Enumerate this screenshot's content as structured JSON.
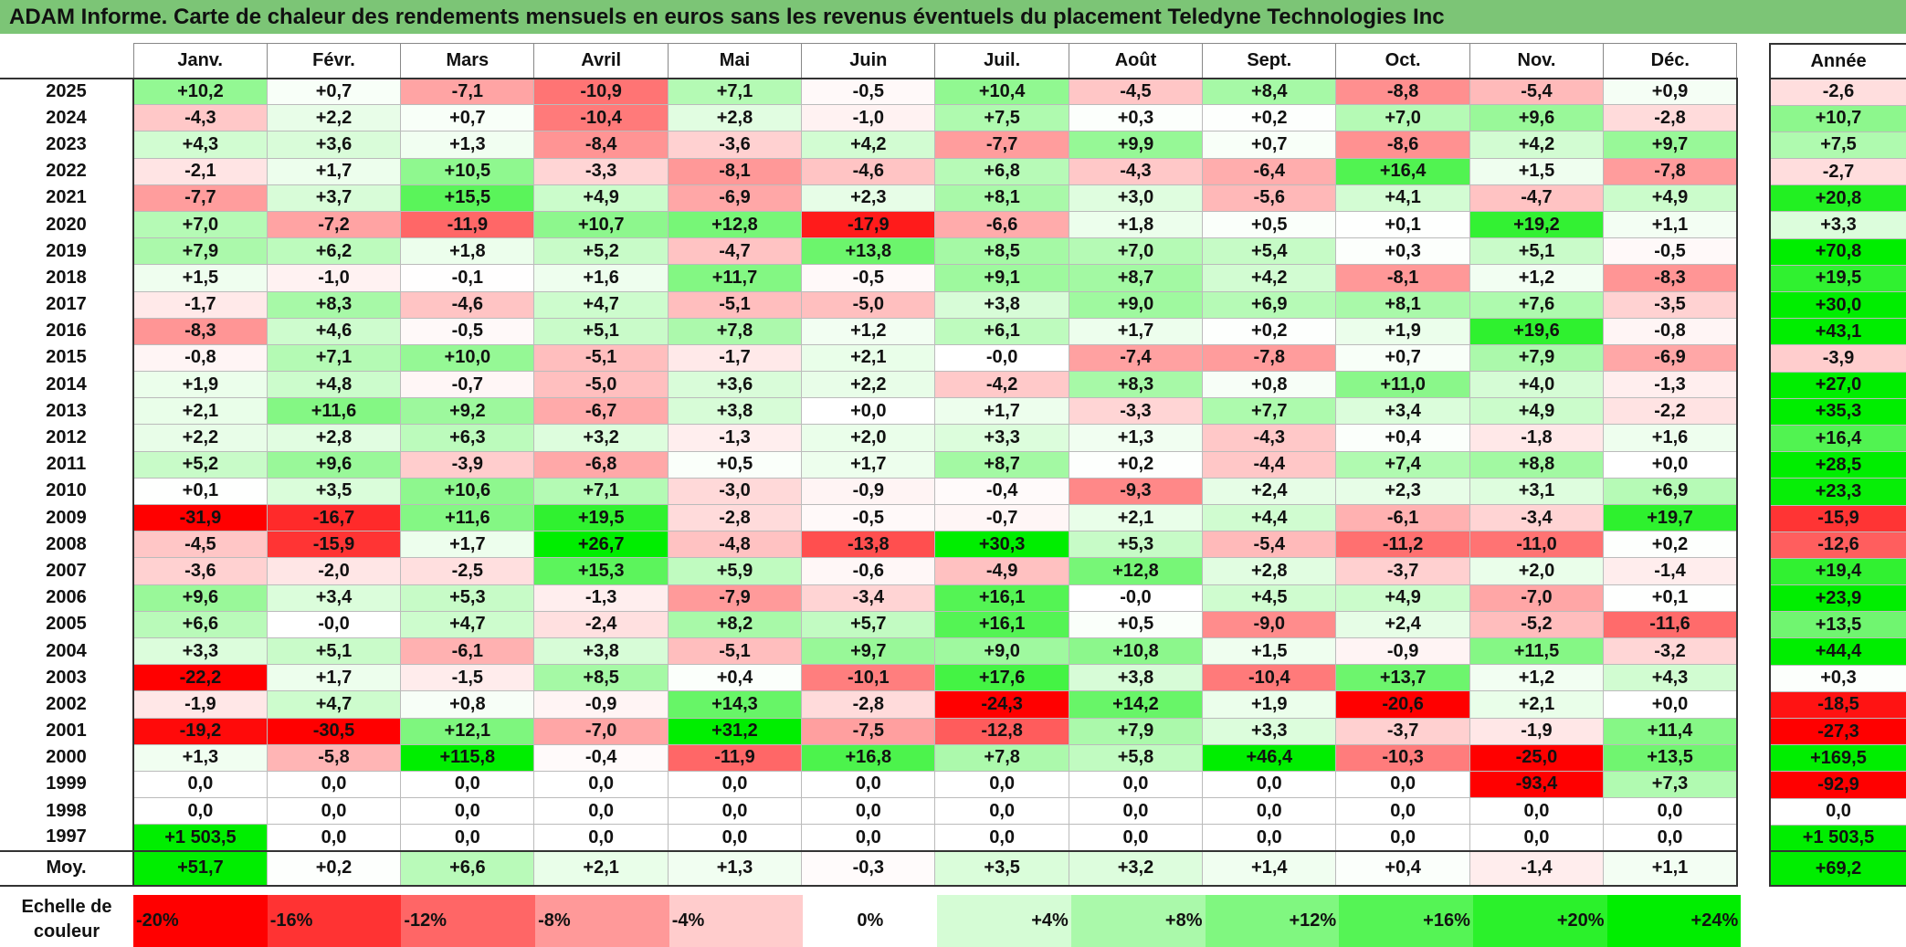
{
  "title": "ADAM Informe. Carte de chaleur des rendements mensuels en euros sans les revenus éventuels du placement Teledyne Technologies Inc",
  "chart_data": {
    "type": "heatmap",
    "title": "ADAM Informe. Carte de chaleur des rendements mensuels en euros sans les revenus éventuels du placement Teledyne Technologies Inc",
    "columns": [
      "Janv.",
      "Févr.",
      "Mars",
      "Avril",
      "Mai",
      "Juin",
      "Juil.",
      "Août",
      "Sept.",
      "Oct.",
      "Nov.",
      "Déc."
    ],
    "year_column_label": "Année",
    "rows": [
      {
        "year": "2025",
        "values": [
          "+10,2",
          "+0,7",
          "-7,1",
          "-10,9",
          "+7,1",
          "-0,5",
          "+10,4",
          "-4,5",
          "+8,4",
          "-8,8",
          "-5,4",
          "+0,9"
        ],
        "annual": "-2,6"
      },
      {
        "year": "2024",
        "values": [
          "-4,3",
          "+2,2",
          "+0,7",
          "-10,4",
          "+2,8",
          "-1,0",
          "+7,5",
          "+0,3",
          "+0,2",
          "+7,0",
          "+9,6",
          "-2,8"
        ],
        "annual": "+10,7"
      },
      {
        "year": "2023",
        "values": [
          "+4,3",
          "+3,6",
          "+1,3",
          "-8,4",
          "-3,6",
          "+4,2",
          "-7,7",
          "+9,9",
          "+0,7",
          "-8,6",
          "+4,2",
          "+9,7"
        ],
        "annual": "+7,5"
      },
      {
        "year": "2022",
        "values": [
          "-2,1",
          "+1,7",
          "+10,5",
          "-3,3",
          "-8,1",
          "-4,6",
          "+6,8",
          "-4,3",
          "-6,4",
          "+16,4",
          "+1,5",
          "-7,8"
        ],
        "annual": "-2,7"
      },
      {
        "year": "2021",
        "values": [
          "-7,7",
          "+3,7",
          "+15,5",
          "+4,9",
          "-6,9",
          "+2,3",
          "+8,1",
          "+3,0",
          "-5,6",
          "+4,1",
          "-4,7",
          "+4,9"
        ],
        "annual": "+20,8"
      },
      {
        "year": "2020",
        "values": [
          "+7,0",
          "-7,2",
          "-11,9",
          "+10,7",
          "+12,8",
          "-17,9",
          "-6,6",
          "+1,8",
          "+0,5",
          "+0,1",
          "+19,2",
          "+1,1"
        ],
        "annual": "+3,3"
      },
      {
        "year": "2019",
        "values": [
          "+7,9",
          "+6,2",
          "+1,8",
          "+5,2",
          "-4,7",
          "+13,8",
          "+8,5",
          "+7,0",
          "+5,4",
          "+0,3",
          "+5,1",
          "-0,5"
        ],
        "annual": "+70,8"
      },
      {
        "year": "2018",
        "values": [
          "+1,5",
          "-1,0",
          "-0,1",
          "+1,6",
          "+11,7",
          "-0,5",
          "+9,1",
          "+8,7",
          "+4,2",
          "-8,1",
          "+1,2",
          "-8,3"
        ],
        "annual": "+19,5"
      },
      {
        "year": "2017",
        "values": [
          "-1,7",
          "+8,3",
          "-4,6",
          "+4,7",
          "-5,1",
          "-5,0",
          "+3,8",
          "+9,0",
          "+6,9",
          "+8,1",
          "+7,6",
          "-3,5"
        ],
        "annual": "+30,0"
      },
      {
        "year": "2016",
        "values": [
          "-8,3",
          "+4,6",
          "-0,5",
          "+5,1",
          "+7,8",
          "+1,2",
          "+6,1",
          "+1,7",
          "+0,2",
          "+1,9",
          "+19,6",
          "-0,8"
        ],
        "annual": "+43,1"
      },
      {
        "year": "2015",
        "values": [
          "-0,8",
          "+7,1",
          "+10,0",
          "-5,1",
          "-1,7",
          "+2,1",
          "-0,0",
          "-7,4",
          "-7,8",
          "+0,7",
          "+7,9",
          "-6,9"
        ],
        "annual": "-3,9"
      },
      {
        "year": "2014",
        "values": [
          "+1,9",
          "+4,8",
          "-0,7",
          "-5,0",
          "+3,6",
          "+2,2",
          "-4,2",
          "+8,3",
          "+0,8",
          "+11,0",
          "+4,0",
          "-1,3"
        ],
        "annual": "+27,0"
      },
      {
        "year": "2013",
        "values": [
          "+2,1",
          "+11,6",
          "+9,2",
          "-6,7",
          "+3,8",
          "+0,0",
          "+1,7",
          "-3,3",
          "+7,7",
          "+3,4",
          "+4,9",
          "-2,2"
        ],
        "annual": "+35,3"
      },
      {
        "year": "2012",
        "values": [
          "+2,2",
          "+2,8",
          "+6,3",
          "+3,2",
          "-1,3",
          "+2,0",
          "+3,3",
          "+1,3",
          "-4,3",
          "+0,4",
          "-1,8",
          "+1,6"
        ],
        "annual": "+16,4"
      },
      {
        "year": "2011",
        "values": [
          "+5,2",
          "+9,6",
          "-3,9",
          "-6,8",
          "+0,5",
          "+1,7",
          "+8,7",
          "+0,2",
          "-4,4",
          "+7,4",
          "+8,8",
          "+0,0"
        ],
        "annual": "+28,5"
      },
      {
        "year": "2010",
        "values": [
          "+0,1",
          "+3,5",
          "+10,6",
          "+7,1",
          "-3,0",
          "-0,9",
          "-0,4",
          "-9,3",
          "+2,4",
          "+2,3",
          "+3,1",
          "+6,9"
        ],
        "annual": "+23,3"
      },
      {
        "year": "2009",
        "values": [
          "-31,9",
          "-16,7",
          "+11,6",
          "+19,5",
          "-2,8",
          "-0,5",
          "-0,7",
          "+2,1",
          "+4,4",
          "-6,1",
          "-3,4",
          "+19,7"
        ],
        "annual": "-15,9"
      },
      {
        "year": "2008",
        "values": [
          "-4,5",
          "-15,9",
          "+1,7",
          "+26,7",
          "-4,8",
          "-13,8",
          "+30,3",
          "+5,3",
          "-5,4",
          "-11,2",
          "-11,0",
          "+0,2"
        ],
        "annual": "-12,6"
      },
      {
        "year": "2007",
        "values": [
          "-3,6",
          "-2,0",
          "-2,5",
          "+15,3",
          "+5,9",
          "-0,6",
          "-4,9",
          "+12,8",
          "+2,8",
          "-3,7",
          "+2,0",
          "-1,4"
        ],
        "annual": "+19,4"
      },
      {
        "year": "2006",
        "values": [
          "+9,6",
          "+3,4",
          "+5,3",
          "-1,3",
          "-7,9",
          "-3,4",
          "+16,1",
          "-0,0",
          "+4,5",
          "+4,9",
          "-7,0",
          "+0,1"
        ],
        "annual": "+23,9"
      },
      {
        "year": "2005",
        "values": [
          "+6,6",
          "-0,0",
          "+4,7",
          "-2,4",
          "+8,2",
          "+5,7",
          "+16,1",
          "+0,5",
          "-9,0",
          "+2,4",
          "-5,2",
          "-11,6"
        ],
        "annual": "+13,5"
      },
      {
        "year": "2004",
        "values": [
          "+3,3",
          "+5,1",
          "-6,1",
          "+3,8",
          "-5,1",
          "+9,7",
          "+9,0",
          "+10,8",
          "+1,5",
          "-0,9",
          "+11,5",
          "-3,2"
        ],
        "annual": "+44,4"
      },
      {
        "year": "2003",
        "values": [
          "-22,2",
          "+1,7",
          "-1,5",
          "+8,5",
          "+0,4",
          "-10,1",
          "+17,6",
          "+3,8",
          "-10,4",
          "+13,7",
          "+1,2",
          "+4,3"
        ],
        "annual": "+0,3"
      },
      {
        "year": "2002",
        "values": [
          "-1,9",
          "+4,7",
          "+0,8",
          "-0,9",
          "+14,3",
          "-2,8",
          "-24,3",
          "+14,2",
          "+1,9",
          "-20,6",
          "+2,1",
          "+0,0"
        ],
        "annual": "-18,5"
      },
      {
        "year": "2001",
        "values": [
          "-19,2",
          "-30,5",
          "+12,1",
          "-7,0",
          "+31,2",
          "-7,5",
          "-12,8",
          "+7,9",
          "+3,3",
          "-3,7",
          "-1,9",
          "+11,4"
        ],
        "annual": "-27,3"
      },
      {
        "year": "2000",
        "values": [
          "+1,3",
          "-5,8",
          "+115,8",
          "-0,4",
          "-11,9",
          "+16,8",
          "+7,8",
          "+5,8",
          "+46,4",
          "-10,3",
          "-25,0",
          "+13,5"
        ],
        "annual": "+169,5"
      },
      {
        "year": "1999",
        "values": [
          "0,0",
          "0,0",
          "0,0",
          "0,0",
          "0,0",
          "0,0",
          "0,0",
          "0,0",
          "0,0",
          "0,0",
          "-93,4",
          "+7,3"
        ],
        "annual": "-92,9"
      },
      {
        "year": "1998",
        "values": [
          "0,0",
          "0,0",
          "0,0",
          "0,0",
          "0,0",
          "0,0",
          "0,0",
          "0,0",
          "0,0",
          "0,0",
          "0,0",
          "0,0"
        ],
        "annual": "0,0"
      },
      {
        "year": "1997",
        "values": [
          "+1 503,5",
          "0,0",
          "0,0",
          "0,0",
          "0,0",
          "0,0",
          "0,0",
          "0,0",
          "0,0",
          "0,0",
          "0,0",
          "0,0"
        ],
        "annual": "+1 503,5"
      }
    ],
    "average": {
      "label": "Moy.",
      "values": [
        "+51,7",
        "+0,2",
        "+6,6",
        "+2,1",
        "+1,3",
        "-0,3",
        "+3,5",
        "+3,2",
        "+1,4",
        "+0,4",
        "-1,4",
        "+1,1"
      ],
      "annual": "+69,2"
    },
    "scale": {
      "label": "Echelle de couleur",
      "entries": [
        "-20%",
        "-16%",
        "-12%",
        "-8%",
        "-4%",
        "0%",
        "+4%",
        "+8%",
        "+12%",
        "+16%",
        "+20%",
        "+24%"
      ],
      "min": -20,
      "max": 24
    },
    "colors": {
      "negative_max": "#ff0000",
      "neutral": "#ffffff",
      "positive_max": "#00ee00",
      "title_bar": "#7cc576"
    }
  }
}
